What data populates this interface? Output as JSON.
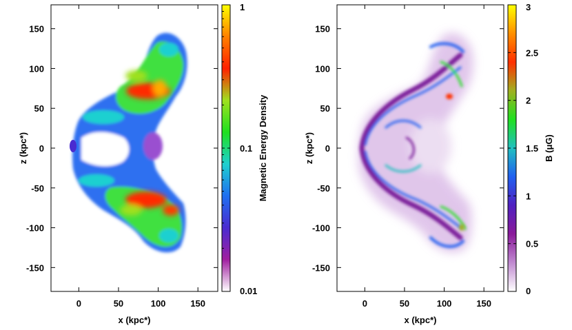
{
  "chart_data": [
    {
      "type": "heatmap",
      "panel": "left",
      "xlabel": "x (kpc*)",
      "ylabel": "z (kpc*)",
      "xlim": [
        -35,
        175
      ],
      "ylim": [
        -180,
        180
      ],
      "xticks": [
        {
          "v": 0,
          "label": "0"
        },
        {
          "v": 50,
          "label": "50"
        },
        {
          "v": 100,
          "label": "100"
        },
        {
          "v": 150,
          "label": "150"
        }
      ],
      "yticks": [
        {
          "v": 150,
          "label": "150"
        },
        {
          "v": 100,
          "label": "100"
        },
        {
          "v": 50,
          "label": "50"
        },
        {
          "v": 0,
          "label": "0"
        },
        {
          "v": -50,
          "label": "-50"
        },
        {
          "v": -100,
          "label": "-100"
        },
        {
          "v": -150,
          "label": "-150"
        }
      ],
      "colorbar": {
        "label": "Magnetic Energy Density",
        "scale": "log",
        "range": [
          0.01,
          1
        ],
        "ticks": [
          {
            "v": 1,
            "label": "1"
          },
          {
            "v": 0.1,
            "label": "0.1"
          },
          {
            "v": 0.01,
            "label": "0.01"
          }
        ],
        "colors": [
          "#ffffff",
          "#a01fa0",
          "#4a2bd0",
          "#1f6ff0",
          "#1fd0d0",
          "#1fe01f",
          "#a0e01f",
          "#ff2000",
          "#ff8000",
          "#ffff00"
        ]
      }
    },
    {
      "type": "heatmap",
      "panel": "right",
      "xlabel": "x (kpc*)",
      "ylabel": "z (kpc*)",
      "xlim": [
        -35,
        175
      ],
      "ylim": [
        -180,
        180
      ],
      "xticks": [
        {
          "v": 0,
          "label": "0"
        },
        {
          "v": 50,
          "label": "50"
        },
        {
          "v": 100,
          "label": "100"
        },
        {
          "v": 150,
          "label": "150"
        }
      ],
      "yticks": [
        {
          "v": 150,
          "label": "150"
        },
        {
          "v": 100,
          "label": "100"
        },
        {
          "v": 50,
          "label": "50"
        },
        {
          "v": 0,
          "label": "0"
        },
        {
          "v": -50,
          "label": "-50"
        },
        {
          "v": -100,
          "label": "-100"
        },
        {
          "v": -150,
          "label": "-150"
        }
      ],
      "colorbar": {
        "label": "B (μG)",
        "scale": "linear",
        "range": [
          0,
          3
        ],
        "ticks": [
          {
            "v": 3,
            "label": "3"
          },
          {
            "v": 2.5,
            "label": "2.5"
          },
          {
            "v": 2,
            "label": "2"
          },
          {
            "v": 1.5,
            "label": "1.5"
          },
          {
            "v": 1,
            "label": "1"
          },
          {
            "v": 0.5,
            "label": "0.5"
          },
          {
            "v": 0,
            "label": "0"
          }
        ],
        "colors": [
          "#ffffff",
          "#c08ad0",
          "#8a1a9a",
          "#5020c0",
          "#2060f0",
          "#20c0c0",
          "#20e020",
          "#a0b020",
          "#ff3000",
          "#ff9000",
          "#ffff00"
        ]
      }
    }
  ]
}
